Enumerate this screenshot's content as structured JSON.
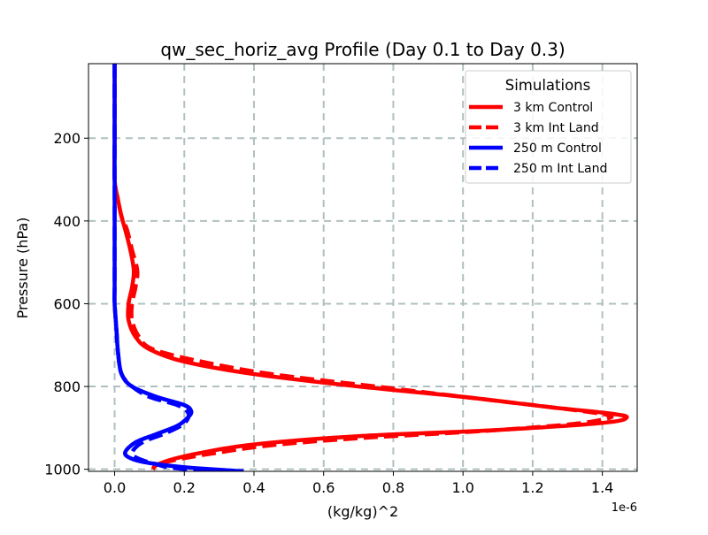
{
  "chart_data": {
    "type": "line",
    "title": "qw_sec_horiz_avg Profile (Day 0.1 to Day 0.3)",
    "xlabel": "(kg/kg)^2",
    "ylabel": "Pressure (hPa)",
    "x_offset_label": "1e-6",
    "xlim": [
      -0.075,
      1.5
    ],
    "ylim_inverted": [
      1005,
      20
    ],
    "x_ticks": [
      "0.0",
      "0.2",
      "0.4",
      "0.6",
      "0.8",
      "1.0",
      "1.2",
      "1.4"
    ],
    "x_tick_values": [
      0.0,
      0.2,
      0.4,
      0.6,
      0.8,
      1.0,
      1.2,
      1.4
    ],
    "y_ticks": [
      "200",
      "400",
      "600",
      "800",
      "1000"
    ],
    "y_tick_values": [
      200,
      400,
      600,
      800,
      1000
    ],
    "grid": true,
    "legend": {
      "title": "Simulations",
      "placement": "upper-right"
    },
    "series": [
      {
        "name": "3 km Control",
        "color": "#ff0000",
        "dash": "solid",
        "points": [
          [
            0.0,
            20
          ],
          [
            0.0,
            100
          ],
          [
            0.0,
            200
          ],
          [
            0.0,
            300
          ],
          [
            0.01,
            350
          ],
          [
            0.02,
            390
          ],
          [
            0.03,
            420
          ],
          [
            0.045,
            470
          ],
          [
            0.055,
            520
          ],
          [
            0.05,
            560
          ],
          [
            0.04,
            600
          ],
          [
            0.04,
            640
          ],
          [
            0.06,
            680
          ],
          [
            0.1,
            710
          ],
          [
            0.2,
            740
          ],
          [
            0.4,
            770
          ],
          [
            0.7,
            800
          ],
          [
            1.0,
            825
          ],
          [
            1.25,
            850
          ],
          [
            1.42,
            865
          ],
          [
            1.47,
            875
          ],
          [
            1.4,
            888
          ],
          [
            1.1,
            905
          ],
          [
            0.7,
            920
          ],
          [
            0.4,
            940
          ],
          [
            0.25,
            960
          ],
          [
            0.17,
            975
          ],
          [
            0.12,
            990
          ],
          [
            0.11,
            1000
          ]
        ]
      },
      {
        "name": "3 km Int Land",
        "color": "#ff0000",
        "dash": "dashed",
        "points": [
          [
            0.0,
            20
          ],
          [
            0.0,
            100
          ],
          [
            0.0,
            200
          ],
          [
            0.0,
            300
          ],
          [
            0.01,
            350
          ],
          [
            0.02,
            390
          ],
          [
            0.035,
            420
          ],
          [
            0.05,
            470
          ],
          [
            0.065,
            520
          ],
          [
            0.06,
            560
          ],
          [
            0.05,
            600
          ],
          [
            0.05,
            640
          ],
          [
            0.07,
            680
          ],
          [
            0.11,
            710
          ],
          [
            0.25,
            740
          ],
          [
            0.45,
            770
          ],
          [
            0.75,
            800
          ],
          [
            1.05,
            830
          ],
          [
            1.3,
            855
          ],
          [
            1.42,
            870
          ],
          [
            1.4,
            880
          ],
          [
            1.3,
            892
          ],
          [
            1.05,
            908
          ],
          [
            0.7,
            925
          ],
          [
            0.45,
            942
          ],
          [
            0.28,
            962
          ],
          [
            0.17,
            978
          ],
          [
            0.12,
            990
          ],
          [
            0.11,
            1000
          ]
        ]
      },
      {
        "name": "250 m Control",
        "color": "#0000ff",
        "dash": "solid",
        "points": [
          [
            0.0,
            20
          ],
          [
            0.0,
            100
          ],
          [
            0.0,
            200
          ],
          [
            0.0,
            300
          ],
          [
            0.0,
            400
          ],
          [
            0.0,
            500
          ],
          [
            0.0,
            560
          ],
          [
            0.0,
            600
          ],
          [
            0.005,
            660
          ],
          [
            0.01,
            720
          ],
          [
            0.02,
            770
          ],
          [
            0.05,
            800
          ],
          [
            0.12,
            825
          ],
          [
            0.2,
            845
          ],
          [
            0.22,
            860
          ],
          [
            0.21,
            875
          ],
          [
            0.18,
            895
          ],
          [
            0.12,
            915
          ],
          [
            0.06,
            935
          ],
          [
            0.03,
            960
          ],
          [
            0.05,
            975
          ],
          [
            0.1,
            985
          ],
          [
            0.2,
            995
          ],
          [
            0.37,
            1005
          ]
        ]
      },
      {
        "name": "250 m Int Land",
        "color": "#0000ff",
        "dash": "dashed",
        "points": [
          [
            0.0,
            20
          ],
          [
            0.0,
            100
          ],
          [
            0.0,
            200
          ],
          [
            0.0,
            300
          ],
          [
            0.0,
            400
          ],
          [
            0.0,
            500
          ],
          [
            0.0,
            560
          ],
          [
            0.0,
            600
          ],
          [
            0.005,
            660
          ],
          [
            0.01,
            720
          ],
          [
            0.02,
            770
          ],
          [
            0.05,
            800
          ],
          [
            0.1,
            825
          ],
          [
            0.18,
            845
          ],
          [
            0.21,
            862
          ],
          [
            0.21,
            878
          ],
          [
            0.19,
            895
          ],
          [
            0.14,
            915
          ],
          [
            0.08,
            935
          ],
          [
            0.05,
            960
          ],
          [
            0.07,
            975
          ],
          [
            0.12,
            988
          ],
          [
            0.16,
            996
          ],
          [
            0.25,
            1002
          ],
          [
            0.37,
            1005
          ]
        ]
      }
    ]
  }
}
